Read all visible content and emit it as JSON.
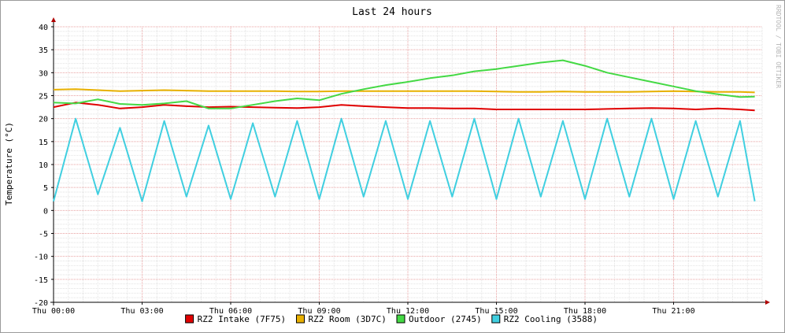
{
  "chart_data": {
    "type": "line",
    "title": "Last 24 hours",
    "ylabel": "Temperature (°C)",
    "xlabel": "",
    "watermark": "RRDTOOL / TOBI OETIKER",
    "ylim": [
      -20,
      40
    ],
    "yticks": [
      -20,
      -15,
      -10,
      -5,
      0,
      5,
      10,
      15,
      20,
      25,
      30,
      35,
      40
    ],
    "xlim": [
      0,
      24
    ],
    "xticks": [
      {
        "h": 0,
        "label": "Thu 00:00"
      },
      {
        "h": 3,
        "label": "Thu 03:00"
      },
      {
        "h": 6,
        "label": "Thu 06:00"
      },
      {
        "h": 9,
        "label": "Thu 09:00"
      },
      {
        "h": 12,
        "label": "Thu 12:00"
      },
      {
        "h": 15,
        "label": "Thu 15:00"
      },
      {
        "h": 18,
        "label": "Thu 18:00"
      },
      {
        "h": 21,
        "label": "Thu 21:00"
      }
    ],
    "grid": true,
    "legend_position": "bottom",
    "series": [
      {
        "name": "RZ2 Intake (7F75)",
        "color": "#e00000",
        "x": [
          0,
          0.75,
          1.5,
          2.25,
          3,
          3.75,
          4.5,
          5.25,
          6,
          6.75,
          7.5,
          8.25,
          9,
          9.75,
          10.5,
          11.25,
          12,
          12.75,
          13.5,
          14.25,
          15,
          15.75,
          16.5,
          17.25,
          18,
          18.75,
          19.5,
          20.25,
          21,
          21.75,
          22.5,
          23.25,
          23.75
        ],
        "y": [
          22.5,
          23.5,
          23.0,
          22.2,
          22.5,
          23.0,
          22.7,
          22.5,
          22.6,
          22.5,
          22.4,
          22.3,
          22.5,
          23.0,
          22.7,
          22.5,
          22.3,
          22.3,
          22.2,
          22.2,
          22.0,
          22.0,
          22.0,
          22.0,
          22.0,
          22.1,
          22.2,
          22.3,
          22.2,
          22.0,
          22.2,
          22.0,
          21.8
        ]
      },
      {
        "name": "RZ2 Room (3D7C)",
        "color": "#e8b000",
        "x": [
          0,
          0.75,
          1.5,
          2.25,
          3,
          3.75,
          4.5,
          5.25,
          6,
          6.75,
          7.5,
          8.25,
          9,
          9.75,
          10.5,
          11.25,
          12,
          12.75,
          13.5,
          14.25,
          15,
          15.75,
          16.5,
          17.25,
          18,
          18.75,
          19.5,
          20.25,
          21,
          21.75,
          22.5,
          23.25,
          23.75
        ],
        "y": [
          26.3,
          26.4,
          26.2,
          26.0,
          26.1,
          26.2,
          26.1,
          26.0,
          26.0,
          26.0,
          26.0,
          25.9,
          25.9,
          26.0,
          26.0,
          26.0,
          26.0,
          26.0,
          26.0,
          26.0,
          25.9,
          25.8,
          25.8,
          25.9,
          25.8,
          25.8,
          25.8,
          25.9,
          26.0,
          25.9,
          25.8,
          25.8,
          25.7
        ]
      },
      {
        "name": "Outdoor (2745)",
        "color": "#44d944",
        "x": [
          0,
          0.75,
          1.5,
          2.25,
          3,
          3.75,
          4.5,
          5.25,
          6,
          6.75,
          7.5,
          8.25,
          9,
          9.75,
          10.5,
          11.25,
          12,
          12.75,
          13.5,
          14.25,
          15,
          15.75,
          16.5,
          17.25,
          18,
          18.75,
          19.5,
          20.25,
          21,
          21.75,
          22.5,
          23.25,
          23.75
        ],
        "y": [
          23.5,
          23.3,
          24.2,
          23.2,
          23.0,
          23.3,
          23.8,
          22.2,
          22.2,
          23.0,
          23.8,
          24.4,
          24.0,
          25.4,
          26.4,
          27.3,
          28.0,
          28.8,
          29.4,
          30.3,
          30.8,
          31.5,
          32.2,
          32.7,
          31.5,
          30.0,
          29.0,
          28.0,
          27.0,
          26.0,
          25.3,
          24.7,
          24.8
        ]
      },
      {
        "name": "RZ2 Cooling (3588)",
        "color": "#40cfe0",
        "x": [
          0,
          0.75,
          1.5,
          2.25,
          3,
          3.75,
          4.5,
          5.25,
          6,
          6.75,
          7.5,
          8.25,
          9,
          9.75,
          10.5,
          11.25,
          12,
          12.75,
          13.5,
          14.25,
          15,
          15.75,
          16.5,
          17.25,
          18,
          18.75,
          19.5,
          20.25,
          21,
          21.75,
          22.5,
          23.25,
          23.75
        ],
        "y": [
          2.0,
          20.0,
          3.5,
          18.0,
          2.0,
          19.5,
          3.0,
          18.5,
          2.5,
          19.0,
          3.0,
          19.5,
          2.5,
          20.0,
          3.0,
          19.5,
          2.5,
          19.5,
          3.0,
          20.0,
          2.5,
          20.0,
          3.0,
          19.5,
          2.5,
          20.0,
          3.0,
          20.0,
          2.5,
          19.5,
          3.0,
          19.5,
          2.0
        ]
      }
    ]
  }
}
